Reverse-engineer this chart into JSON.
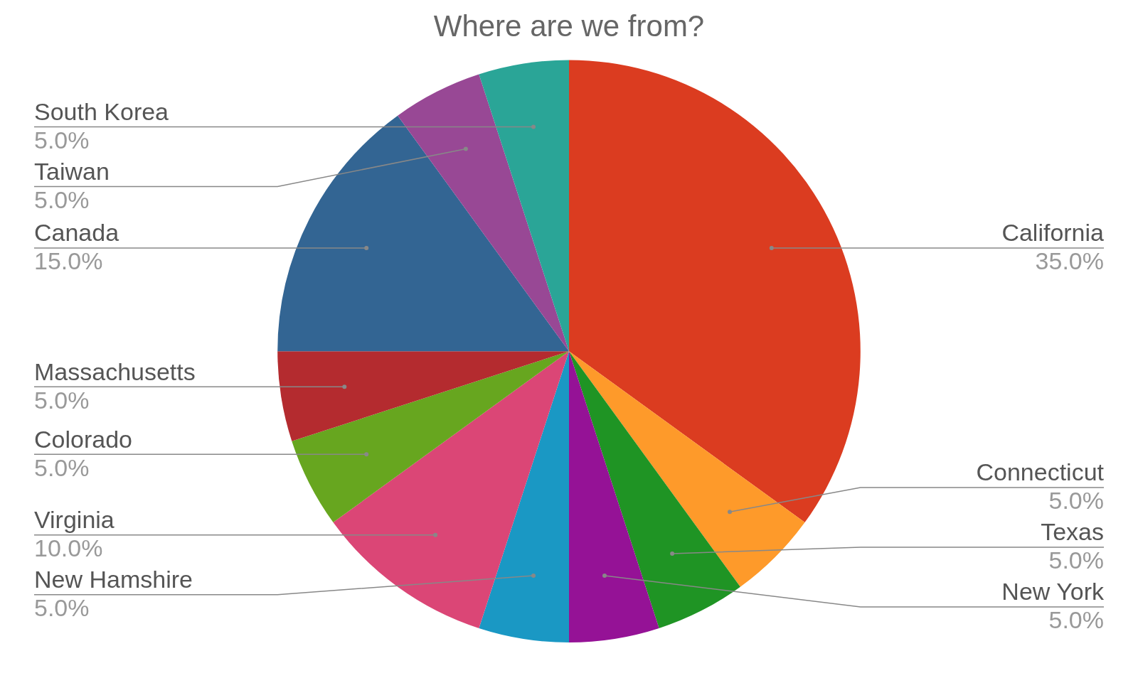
{
  "chart_data": {
    "type": "pie",
    "title": "Where are we from?",
    "categories": [
      "California",
      "Connecticut",
      "Texas",
      "New York",
      "New Hamshire",
      "Virginia",
      "Colorado",
      "Massachusetts",
      "Canada",
      "Taiwan",
      "South Korea"
    ],
    "values": [
      35,
      5,
      5,
      5,
      5,
      10,
      5,
      5,
      15,
      5,
      5
    ],
    "value_labels": [
      "35.0%",
      "5.0%",
      "5.0%",
      "5.0%",
      "5.0%",
      "10.0%",
      "5.0%",
      "5.0%",
      "15.0%",
      "5.0%",
      "5.0%"
    ],
    "colors": [
      "#db3c20",
      "#fe9a2a",
      "#1f9424",
      "#951296",
      "#1a98c4",
      "#db4676",
      "#67a61f",
      "#b42b2f",
      "#336593",
      "#984895",
      "#2aa597"
    ],
    "legend": false
  }
}
